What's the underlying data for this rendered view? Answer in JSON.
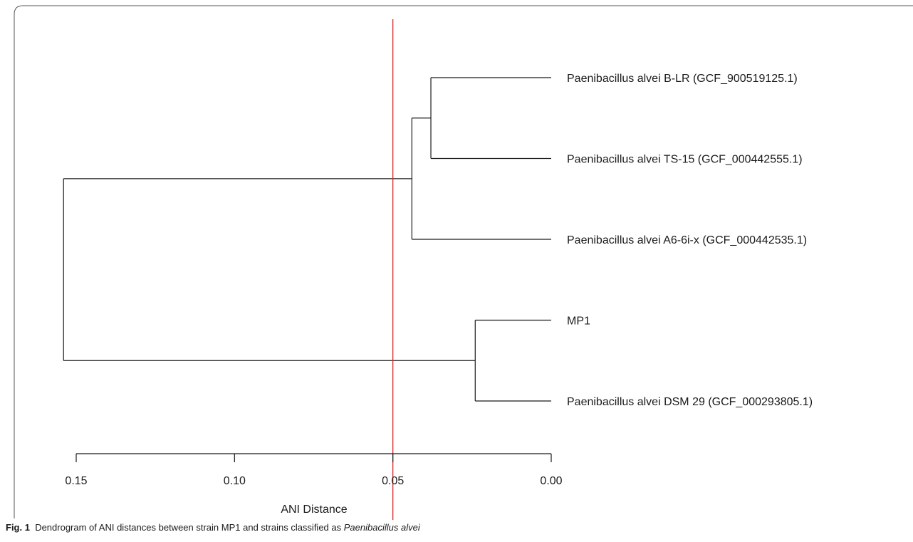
{
  "caption": {
    "fig_label": "Fig. 1",
    "text": "Dendrogram of ANI distances between strain MP1 and strains classified as",
    "italic": "Paenibacillus alvei"
  },
  "chart_data": {
    "type": "dendrogram",
    "xlabel": "ANI Distance",
    "xlim": [
      0.155,
      0.0
    ],
    "ticks": [
      "0.15",
      "0.10",
      "0.05",
      "0.00"
    ],
    "tick_values": [
      0.15,
      0.1,
      0.05,
      0.0
    ],
    "threshold": {
      "value": 0.05,
      "color": "#d62728"
    },
    "leaves": [
      "Paenibacillus alvei B-LR (GCF_900519125.1)",
      "Paenibacillus alvei TS-15 (GCF_000442555.1)",
      "Paenibacillus alvei A6-6i-x (GCF_000442535.1)",
      "MP1",
      "Paenibacillus alvei DSM 29 (GCF_000293805.1)"
    ],
    "merges": [
      {
        "children": [
          0,
          1
        ],
        "height": 0.038
      },
      {
        "children": [
          3,
          4
        ],
        "height": 0.024
      },
      {
        "children": [
          "m0",
          2
        ],
        "height": 0.044
      },
      {
        "children": [
          "m2",
          "m1"
        ],
        "height": 0.154
      }
    ]
  }
}
